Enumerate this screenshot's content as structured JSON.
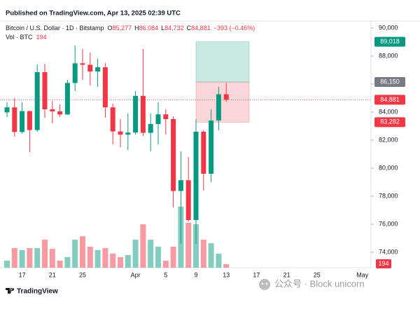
{
  "chart_data": {
    "type": "candlestick",
    "published": "Published on TradingView.com, Apr 13, 2025 02:39 UTC",
    "symbol": "Bitcoin / U.S. Dollar · 1D · Bitstamp",
    "ohlc_legend": [
      {
        "key": "O",
        "value": 85277,
        "label": "85,277"
      },
      {
        "key": "H",
        "value": 86084,
        "label": "86,084"
      },
      {
        "key": "L",
        "value": 84732,
        "label": "84,732"
      },
      {
        "key": "C",
        "value": 84881,
        "label": "84,881"
      }
    ],
    "change": "−393 (−0.46%)",
    "volume_label": "Vol · BTC",
    "categories": [
      null,
      null,
      "17",
      null,
      null,
      null,
      "21",
      null,
      null,
      null,
      "25",
      null,
      null,
      null,
      null,
      null,
      null,
      "Apr",
      null,
      null,
      null,
      "5",
      null,
      null,
      null,
      "9",
      null,
      null,
      null,
      "13",
      null,
      null,
      null,
      "17",
      null,
      null,
      null,
      "21",
      null,
      null,
      null,
      "25",
      null,
      null,
      null,
      null,
      null,
      "May"
    ],
    "open": [
      83980,
      84340,
      82580,
      84070,
      82720,
      86850,
      84200,
      84050,
      83830,
      86080,
      87480,
      87380,
      86900,
      87200,
      84340,
      82620,
      82390,
      82540,
      85160,
      82520,
      83150,
      83840,
      83500,
      78370,
      79140,
      76300,
      82600,
      79600,
      83400,
      85277,
      null,
      null,
      null,
      null,
      null,
      null,
      null,
      null,
      null,
      null,
      null,
      null,
      null,
      null,
      null,
      null,
      null,
      null
    ],
    "high": [
      84700,
      85000,
      84700,
      84100,
      87400,
      87450,
      84800,
      84550,
      86300,
      88750,
      88500,
      88250,
      87800,
      87500,
      84600,
      83500,
      83900,
      85500,
      88500,
      83900,
      84700,
      84200,
      83700,
      81200,
      80800,
      83500,
      82700,
      84200,
      85800,
      86084,
      null,
      null,
      null,
      null,
      null,
      null,
      null,
      null,
      null,
      null,
      null,
      null,
      null,
      null,
      null,
      null,
      null,
      null
    ],
    "low": [
      83650,
      82250,
      82450,
      81150,
      82600,
      83600,
      83200,
      83650,
      83800,
      85500,
      86300,
      85900,
      85800,
      83600,
      81700,
      81500,
      81300,
      82400,
      82300,
      81200,
      81700,
      82400,
      77200,
      74600,
      76200,
      74600,
      78400,
      79000,
      82700,
      84732,
      null,
      null,
      null,
      null,
      null,
      null,
      null,
      null,
      null,
      null,
      null,
      null,
      null,
      null,
      null,
      null,
      null,
      null
    ],
    "close": [
      84340,
      82580,
      84070,
      82720,
      86850,
      84200,
      84050,
      83830,
      86080,
      87480,
      87380,
      86900,
      87200,
      84340,
      82620,
      82390,
      82540,
      85160,
      82520,
      83150,
      83840,
      83500,
      78370,
      79140,
      76300,
      82600,
      79600,
      83400,
      85274,
      84881,
      null,
      null,
      null,
      null,
      null,
      null,
      null,
      null,
      null,
      null,
      null,
      null,
      null,
      null,
      null,
      null,
      null,
      null
    ],
    "volume": [
      390,
      1090,
      980,
      1090,
      1090,
      1560,
      1050,
      390,
      590,
      1560,
      1750,
      1170,
      980,
      1090,
      780,
      590,
      700,
      1560,
      2420,
      1560,
      1170,
      390,
      1170,
      3400,
      2500,
      2420,
      1560,
      1360,
      780,
      194,
      null,
      null,
      null,
      null,
      null,
      null,
      null,
      null,
      null,
      null,
      null,
      null,
      null,
      null,
      null,
      null,
      null,
      null
    ],
    "up_color": "#089981",
    "down_color": "#f23645",
    "ylim": [
      72900,
      90500
    ],
    "yticks": [
      {
        "value": 74000,
        "label": "74,000"
      },
      {
        "value": 76000,
        "label": "76,000"
      },
      {
        "value": 78000,
        "label": "78,000"
      },
      {
        "value": 80000,
        "label": "80,000"
      },
      {
        "value": 82000,
        "label": "82,000"
      },
      {
        "value": 84000,
        "label": "84,000"
      },
      {
        "value": 86000,
        "label": "86,000"
      },
      {
        "value": 88000,
        "label": "88,000"
      },
      {
        "value": 90000,
        "label": "90,000"
      }
    ],
    "last_price": {
      "value": 84881,
      "label": "84,881"
    },
    "position": {
      "target": {
        "value": 89018,
        "label": "89,018"
      },
      "entry": {
        "value": 86150,
        "label": "86,150"
      },
      "stop": {
        "value": 83282,
        "label": "83,282"
      }
    },
    "brand": "TradingView",
    "watermark": "公众号 · Block unicorn"
  }
}
